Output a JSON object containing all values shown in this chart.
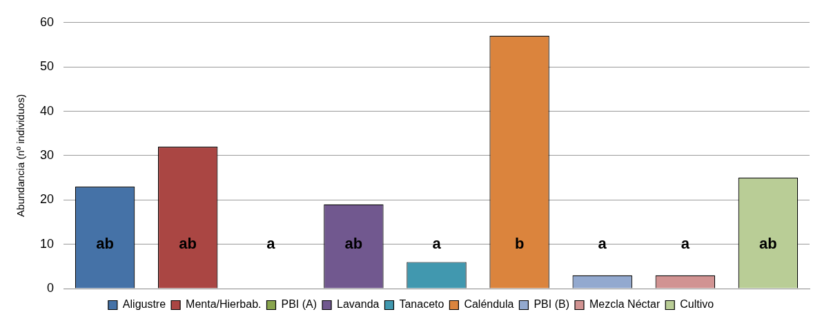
{
  "chart_data": {
    "type": "bar",
    "ylabel": "Abundancia (nº individuos)",
    "categories": [
      null,
      null,
      null,
      null,
      null,
      null,
      null,
      null,
      null
    ],
    "series": [
      {
        "name": "Aligustre",
        "color": "#4572a7",
        "values": [
          23,
          null,
          null,
          null,
          null,
          null,
          null,
          null,
          null
        ]
      },
      {
        "name": "Menta/Hierbab.",
        "color": "#aa4643",
        "values": [
          null,
          32,
          null,
          null,
          null,
          null,
          null,
          null,
          null
        ]
      },
      {
        "name": "PBI (A)",
        "color": "#89a54e",
        "values": [
          null,
          null,
          0,
          null,
          null,
          null,
          null,
          null,
          null
        ]
      },
      {
        "name": "Lavanda",
        "color": "#71588f",
        "values": [
          null,
          null,
          null,
          19,
          null,
          null,
          null,
          null,
          null
        ]
      },
      {
        "name": "Tanaceto",
        "color": "#4198af",
        "values": [
          null,
          null,
          null,
          null,
          6,
          null,
          null,
          null,
          null
        ]
      },
      {
        "name": "Caléndula",
        "color": "#db843d",
        "values": [
          null,
          null,
          null,
          null,
          null,
          57,
          null,
          null,
          null
        ]
      },
      {
        "name": "PBI (B)",
        "color": "#93a9cf",
        "values": [
          null,
          null,
          null,
          null,
          null,
          null,
          3,
          null,
          null
        ]
      },
      {
        "name": "Mezcla Néctar",
        "color": "#d19392",
        "values": [
          null,
          null,
          null,
          null,
          null,
          null,
          null,
          3,
          null
        ]
      },
      {
        "name": "Cultivo",
        "color": "#b9cd96",
        "values": [
          null,
          null,
          null,
          null,
          null,
          null,
          null,
          null,
          25
        ]
      }
    ],
    "annotations": [
      "ab",
      "ab",
      "a",
      "ab",
      "a",
      "b",
      "a",
      "a",
      "ab"
    ],
    "ylim": [
      0,
      60
    ],
    "yticks": [
      0,
      10,
      20,
      30,
      40,
      50,
      60
    ],
    "grid": "y",
    "legend": "bottom"
  }
}
